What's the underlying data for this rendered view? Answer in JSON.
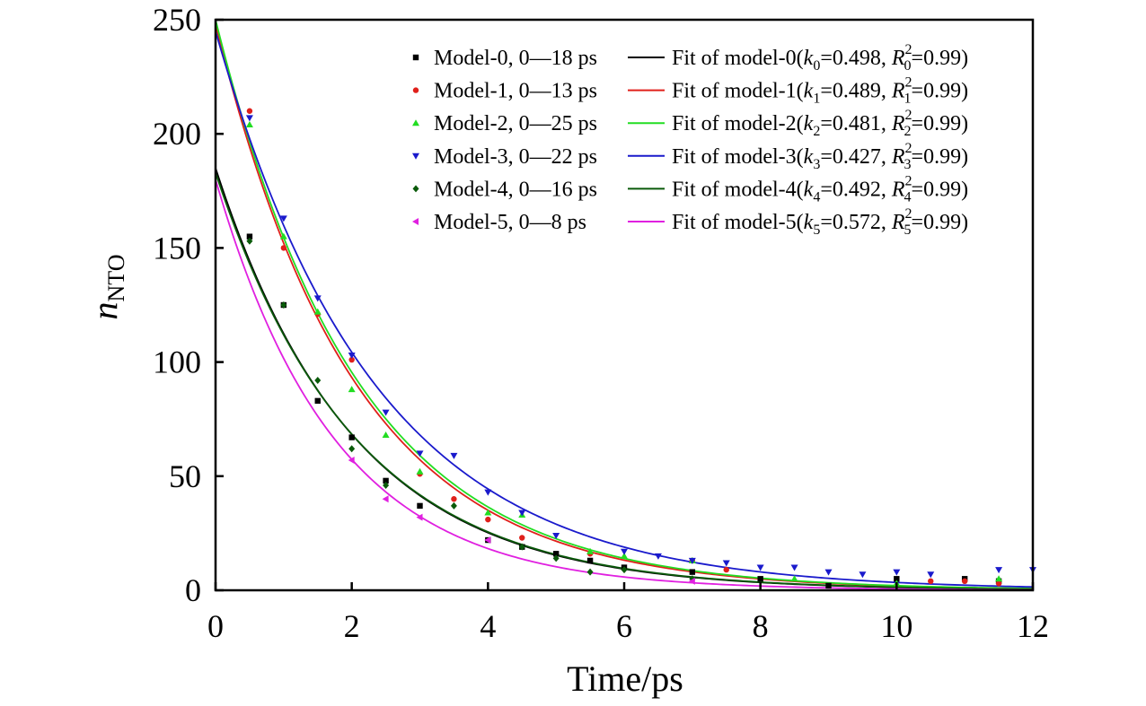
{
  "chart_data": {
    "type": "scatter",
    "title": "",
    "xlabel": "Time/ps",
    "ylabel": "n",
    "ylabel_sub": "NTO",
    "xlim": [
      0,
      12
    ],
    "ylim": [
      0,
      250
    ],
    "xticks": [
      0,
      2,
      4,
      6,
      8,
      10,
      12
    ],
    "yticks": [
      0,
      50,
      100,
      150,
      200,
      250
    ],
    "legend_position": "top-right",
    "series": [
      {
        "name": "Model-0, 0—18 ps",
        "fit_name": "Fit of model-0",
        "marker": "square",
        "color": "#000000",
        "fit": {
          "A": 185,
          "k": 0.498
        },
        "fit_label": {
          "k_sym": "k",
          "k_sub": "0",
          "k_val": "=0.498, ",
          "r_sym": "R",
          "r_sup": "2",
          "r_sub": "0",
          "r_val": "=0.99)"
        },
        "x": [
          0.5,
          1.0,
          1.5,
          2.0,
          2.5,
          3.0,
          4.0,
          4.5,
          5.0,
          5.5,
          6.0,
          7.0,
          8.0,
          9.0,
          10.0,
          11.0,
          11.5
        ],
        "y": [
          155,
          125,
          83,
          67,
          48,
          37,
          22,
          19,
          16,
          13,
          10,
          8,
          5,
          2,
          5,
          5,
          4
        ]
      },
      {
        "name": "Model-1, 0—13 ps",
        "fit_name": "Fit of model-1",
        "marker": "circle",
        "color": "#e0201b",
        "fit": {
          "A": 248,
          "k": 0.489
        },
        "fit_label": {
          "k_sym": "k",
          "k_sub": "1",
          "k_val": "=0.489, ",
          "r_sym": "R",
          "r_sup": "2",
          "r_sub": "1",
          "r_val": "=0.99)"
        },
        "x": [
          0.5,
          1.0,
          1.5,
          2.0,
          3.0,
          3.5,
          4.0,
          4.5,
          5.5,
          7.0,
          7.5,
          10.5,
          11.0,
          11.5
        ],
        "y": [
          210,
          150,
          121,
          101,
          51,
          40,
          31,
          23,
          16,
          13,
          9,
          4,
          4,
          3
        ]
      },
      {
        "name": "Model-2, 0—25 ps",
        "fit_name": "Fit of model-2",
        "marker": "triangle-up",
        "color": "#22dd22",
        "fit": {
          "A": 250,
          "k": 0.481
        },
        "fit_label": {
          "k_sym": "k",
          "k_sub": "2",
          "k_val": "=0.481, ",
          "r_sym": "R",
          "r_sup": "2",
          "r_sub": "2",
          "r_val": "=0.99)"
        },
        "x": [
          0.5,
          1.0,
          1.5,
          2.0,
          2.5,
          3.0,
          4.0,
          4.5,
          5.5,
          6.0,
          7.0,
          8.5,
          10.0,
          11.5
        ],
        "y": [
          204,
          155,
          122,
          88,
          68,
          52,
          34,
          33,
          17,
          15,
          13,
          5,
          3,
          5
        ]
      },
      {
        "name": "Model-3, 0—22 ps",
        "fit_name": "Fit of model-3",
        "marker": "triangle-down",
        "color": "#1a1acc",
        "fit": {
          "A": 245,
          "k": 0.427
        },
        "fit_label": {
          "k_sym": "k",
          "k_sub": "3",
          "k_val": "=0.427, ",
          "r_sym": "R",
          "r_sup": "2",
          "r_sub": "3",
          "r_val": "=0.99)"
        },
        "x": [
          0.5,
          1.0,
          1.5,
          2.0,
          2.5,
          3.0,
          3.5,
          4.0,
          4.5,
          5.0,
          6.0,
          6.5,
          7.0,
          7.5,
          8.0,
          8.5,
          9.0,
          9.5,
          10.0,
          10.5,
          11.5,
          12.0
        ],
        "y": [
          207,
          163,
          128,
          103,
          78,
          60,
          59,
          43,
          34,
          24,
          17,
          15,
          13,
          12,
          10,
          10,
          8,
          7,
          8,
          7,
          9,
          9
        ]
      },
      {
        "name": "Model-4, 0—16 ps",
        "fit_name": "Fit of model-4",
        "marker": "diamond",
        "color": "#0a5a0a",
        "fit": {
          "A": 183,
          "k": 0.492
        },
        "fit_label": {
          "k_sym": "k",
          "k_sub": "4",
          "k_val": "=0.492, ",
          "r_sym": "R",
          "r_sup": "2",
          "r_sub": "4",
          "r_val": "=0.99)"
        },
        "x": [
          0.5,
          1.0,
          1.5,
          2.0,
          2.5,
          3.5,
          4.5,
          5.0,
          5.5,
          6.0,
          7.0
        ],
        "y": [
          153,
          125,
          92,
          62,
          46,
          37,
          19,
          14,
          8,
          9,
          5
        ]
      },
      {
        "name": "Model-5, 0—8 ps",
        "fit_name": "Fit of model-5",
        "marker": "triangle-left",
        "color": "#e020e0",
        "fit": {
          "A": 180,
          "k": 0.572
        },
        "fit_label": {
          "k_sym": "k",
          "k_sub": "5",
          "k_val": "=0.572, ",
          "r_sym": "R",
          "r_sup": "2",
          "r_sub": "5",
          "r_val": "=0.99)"
        },
        "x": [
          2.0,
          2.5,
          3.0,
          4.0,
          7.0
        ],
        "y": [
          57,
          40,
          32,
          22,
          4
        ]
      }
    ]
  }
}
